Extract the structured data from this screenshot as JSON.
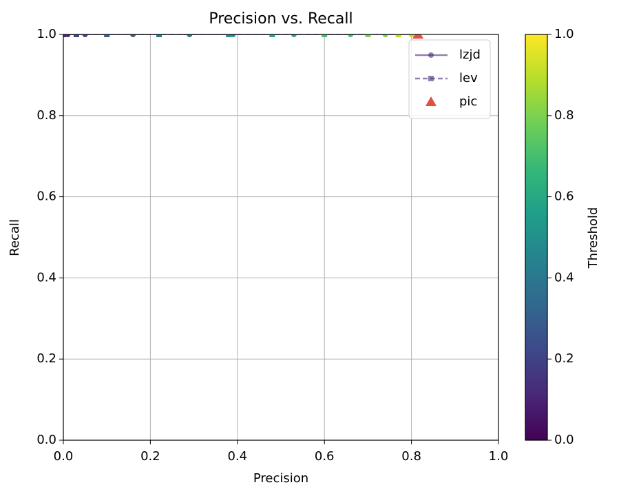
{
  "chart_data": {
    "type": "scatter",
    "title": "Precision vs. Recall",
    "xlabel": "Precision",
    "ylabel": "Recall",
    "colorbar_label": "Threshold",
    "xlim": [
      0,
      1
    ],
    "ylim": [
      0,
      1
    ],
    "clim": [
      0,
      1
    ],
    "xticks": [
      {
        "value": 0,
        "label": "0.0"
      },
      0.2,
      0.4,
      0.6,
      0.8,
      {
        "value": 1,
        "label": "1.0"
      }
    ],
    "yticks": [
      {
        "value": 0,
        "label": "0.0"
      },
      0.2,
      0.4,
      0.6,
      0.8,
      {
        "value": 1,
        "label": "1.0"
      }
    ],
    "cticks": [
      {
        "value": 0,
        "label": "0.0"
      },
      0.2,
      0.4,
      0.6,
      0.8,
      {
        "value": 1,
        "label": "1.0"
      }
    ],
    "colormap": [
      "#440154",
      "#482878",
      "#3e4989",
      "#31688e",
      "#26828e",
      "#1f9e89",
      "#35b779",
      "#6ece58",
      "#b5de2b",
      "#fde725"
    ],
    "grid": true,
    "legend": "upper right",
    "series": [
      {
        "name": "lzjd",
        "marker": "circle",
        "linestyle": "solid",
        "color": "#472d7b",
        "x": [
          0.01,
          0.05,
          0.16,
          0.29,
          0.39,
          0.53,
          0.66,
          0.74,
          0.8
        ],
        "values": [
          1.0,
          1.0,
          1.0,
          1.0,
          1.0,
          1.0,
          1.0,
          1.0,
          1.0
        ],
        "thresholds": [
          0.1,
          0.2,
          0.3,
          0.4,
          0.5,
          0.6,
          0.7,
          0.8,
          0.9
        ]
      },
      {
        "name": "lev",
        "marker": "square",
        "linestyle": "dashed",
        "color": "#472d7b",
        "x": [
          0.0,
          0.03,
          0.1,
          0.22,
          0.38,
          0.48,
          0.6,
          0.7,
          0.77
        ],
        "values": [
          1.0,
          1.0,
          1.0,
          1.0,
          1.0,
          1.0,
          1.0,
          1.0,
          1.0
        ],
        "thresholds": [
          0.1,
          0.2,
          0.3,
          0.4,
          0.5,
          0.6,
          0.7,
          0.8,
          0.9
        ]
      },
      {
        "name": "pic",
        "marker": "triangle",
        "color": "#e03c31",
        "x": [
          0.815
        ],
        "values": [
          1.0
        ]
      }
    ]
  }
}
